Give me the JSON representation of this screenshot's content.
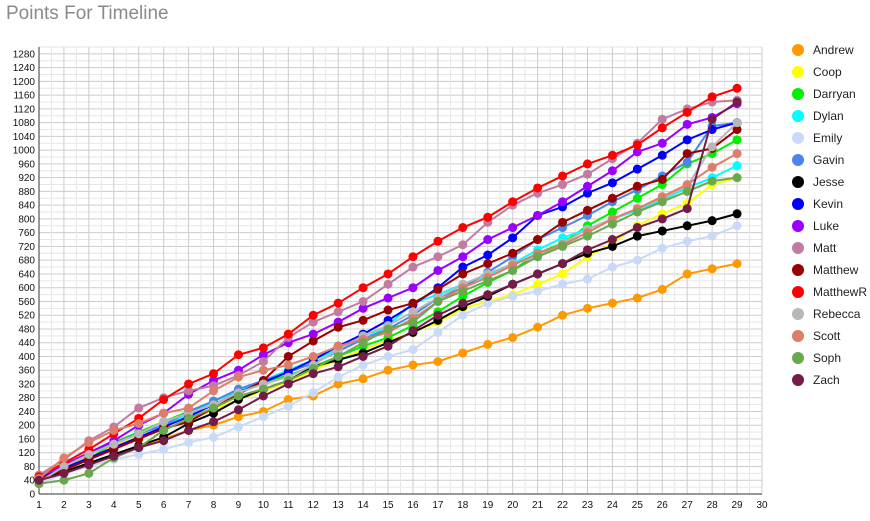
{
  "chart_data": {
    "type": "line",
    "title": "Points For Timeline",
    "xlabel": "",
    "ylabel": "",
    "xlim": [
      1,
      30
    ],
    "ylim": [
      0,
      1300
    ],
    "x_ticks": [
      1,
      2,
      3,
      4,
      5,
      6,
      7,
      8,
      9,
      10,
      11,
      12,
      13,
      14,
      15,
      16,
      17,
      18,
      19,
      20,
      21,
      22,
      23,
      24,
      25,
      26,
      27,
      28,
      29,
      30
    ],
    "y_ticks": [
      0,
      40,
      80,
      120,
      160,
      200,
      240,
      280,
      320,
      360,
      400,
      440,
      480,
      520,
      560,
      600,
      640,
      680,
      720,
      760,
      800,
      840,
      880,
      920,
      960,
      1000,
      1040,
      1080,
      1120,
      1160,
      1200,
      1240,
      1280
    ],
    "grid": true,
    "legend": "right",
    "x": [
      1,
      2,
      3,
      4,
      5,
      6,
      7,
      8,
      9,
      10,
      11,
      12,
      13,
      14,
      15,
      16,
      17,
      18,
      19,
      20,
      21,
      22,
      23,
      24,
      25,
      26,
      27,
      28,
      29
    ],
    "series": [
      {
        "name": "Andrew",
        "color": "#ff9900",
        "values": [
          30,
          60,
          85,
          115,
          140,
          160,
          185,
          200,
          225,
          240,
          275,
          285,
          320,
          335,
          360,
          375,
          385,
          410,
          435,
          455,
          485,
          520,
          540,
          555,
          570,
          595,
          640,
          655,
          670
        ]
      },
      {
        "name": "Coop",
        "color": "#ffff00",
        "values": [
          40,
          80,
          110,
          140,
          170,
          190,
          215,
          245,
          275,
          300,
          325,
          360,
          390,
          420,
          445,
          470,
          500,
          540,
          560,
          580,
          610,
          640,
          690,
          730,
          780,
          815,
          845,
          900,
          920
        ]
      },
      {
        "name": "Darryan",
        "color": "#00ee00",
        "values": [
          45,
          70,
          100,
          150,
          180,
          210,
          240,
          270,
          300,
          325,
          345,
          370,
          400,
          430,
          455,
          490,
          530,
          575,
          615,
          650,
          700,
          730,
          780,
          820,
          860,
          900,
          960,
          990,
          1030
        ]
      },
      {
        "name": "Dylan",
        "color": "#00ffff",
        "values": [
          40,
          80,
          120,
          150,
          175,
          200,
          230,
          270,
          300,
          330,
          360,
          390,
          420,
          450,
          490,
          555,
          580,
          610,
          635,
          670,
          710,
          745,
          770,
          800,
          825,
          855,
          890,
          920,
          955
        ]
      },
      {
        "name": "Emily",
        "color": "#c9daf8",
        "values": [
          30,
          60,
          80,
          100,
          115,
          130,
          150,
          165,
          195,
          225,
          255,
          295,
          340,
          375,
          400,
          420,
          470,
          520,
          555,
          575,
          590,
          610,
          625,
          660,
          680,
          715,
          735,
          750,
          780
        ]
      },
      {
        "name": "Gavin",
        "color": "#4a86e8",
        "values": [
          45,
          80,
          115,
          150,
          175,
          200,
          240,
          270,
          305,
          330,
          355,
          380,
          415,
          450,
          480,
          520,
          570,
          600,
          645,
          690,
          740,
          775,
          810,
          850,
          885,
          925,
          965,
          1070,
          1080
        ]
      },
      {
        "name": "Jesse",
        "color": "#000000",
        "values": [
          40,
          65,
          90,
          115,
          140,
          165,
          205,
          235,
          275,
          305,
          330,
          370,
          390,
          410,
          440,
          470,
          505,
          545,
          575,
          610,
          640,
          670,
          700,
          720,
          750,
          765,
          780,
          795,
          815
        ]
      },
      {
        "name": "Kevin",
        "color": "#0000ff",
        "values": [
          45,
          75,
          105,
          135,
          165,
          195,
          225,
          260,
          295,
          325,
          355,
          390,
          430,
          465,
          505,
          550,
          600,
          660,
          695,
          745,
          810,
          835,
          875,
          905,
          945,
          985,
          1030,
          1060,
          1080
        ]
      },
      {
        "name": "Luke",
        "color": "#9900ff",
        "values": [
          50,
          85,
          120,
          155,
          200,
          235,
          290,
          330,
          360,
          405,
          440,
          465,
          500,
          540,
          570,
          600,
          650,
          690,
          740,
          775,
          810,
          850,
          895,
          940,
          995,
          1020,
          1075,
          1095,
          1135
        ]
      },
      {
        "name": "Matt",
        "color": "#c27ba0",
        "values": [
          55,
          100,
          155,
          195,
          250,
          280,
          300,
          315,
          345,
          385,
          455,
          500,
          530,
          560,
          610,
          660,
          690,
          725,
          790,
          840,
          875,
          900,
          930,
          975,
          1020,
          1090,
          1120,
          1140,
          1145
        ]
      },
      {
        "name": "Matthew",
        "color": "#990000",
        "values": [
          45,
          70,
          100,
          130,
          160,
          190,
          210,
          250,
          290,
          330,
          400,
          445,
          485,
          505,
          535,
          555,
          595,
          640,
          670,
          700,
          740,
          790,
          825,
          860,
          895,
          915,
          990,
          1005,
          1060
        ]
      },
      {
        "name": "MatthewR",
        "color": "#ff0000",
        "values": [
          50,
          90,
          130,
          175,
          220,
          275,
          320,
          350,
          405,
          425,
          465,
          520,
          555,
          600,
          640,
          690,
          735,
          775,
          805,
          850,
          890,
          925,
          960,
          985,
          1015,
          1065,
          1110,
          1155,
          1180
        ]
      },
      {
        "name": "Rebecca",
        "color": "#b7b7b7",
        "values": [
          35,
          80,
          115,
          145,
          175,
          210,
          235,
          260,
          295,
          320,
          340,
          375,
          420,
          460,
          490,
          530,
          570,
          610,
          640,
          670,
          690,
          730,
          770,
          800,
          830,
          860,
          895,
          1010,
          1080
        ]
      },
      {
        "name": "Scott",
        "color": "#dd7e6b",
        "values": [
          45,
          105,
          150,
          185,
          205,
          235,
          250,
          300,
          340,
          360,
          375,
          400,
          430,
          450,
          470,
          510,
          560,
          600,
          630,
          665,
          700,
          725,
          760,
          800,
          830,
          865,
          900,
          950,
          990
        ]
      },
      {
        "name": "Soph",
        "color": "#6aa84f",
        "values": [
          30,
          40,
          60,
          105,
          135,
          185,
          220,
          250,
          285,
          305,
          330,
          365,
          400,
          440,
          480,
          500,
          560,
          590,
          620,
          650,
          690,
          720,
          750,
          785,
          820,
          850,
          880,
          910,
          920
        ]
      },
      {
        "name": "Zach",
        "color": "#741b47",
        "values": [
          40,
          60,
          85,
          110,
          135,
          155,
          185,
          210,
          245,
          285,
          320,
          350,
          370,
          400,
          430,
          475,
          520,
          555,
          580,
          610,
          640,
          670,
          710,
          740,
          775,
          800,
          830,
          1090,
          1140
        ]
      }
    ]
  }
}
